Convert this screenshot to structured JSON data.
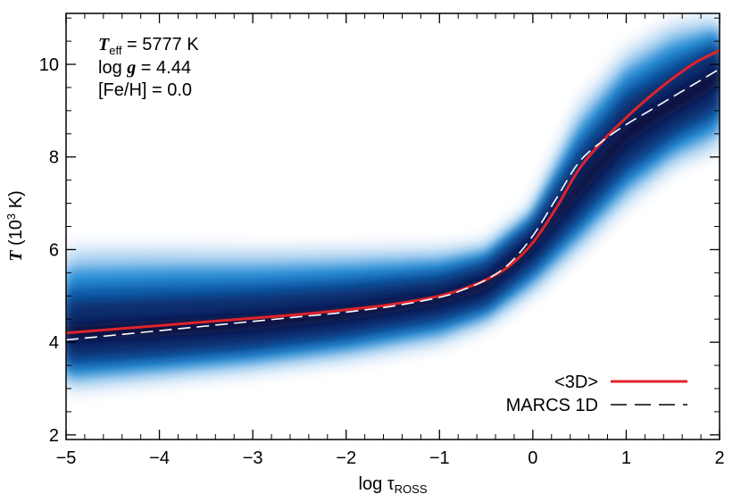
{
  "chart_data": {
    "type": "line",
    "xlabel": {
      "main": "log τ",
      "sub": "ROSS"
    },
    "ylabel": {
      "symbol": "T",
      "rest_pre": " (10",
      "sup": "3",
      "rest_post": " K)"
    },
    "xlim": [
      -5,
      2
    ],
    "ylim": [
      1.9,
      11.1
    ],
    "x_ticks": [
      -5,
      -4,
      -3,
      -2,
      -1,
      0,
      1,
      2
    ],
    "x_tick_labels": [
      "−5",
      "−4",
      "−3",
      "−2",
      "−1",
      "0",
      "1",
      "2"
    ],
    "y_ticks": [
      2,
      4,
      6,
      8,
      10
    ],
    "y_tick_labels": [
      "2",
      "4",
      "6",
      "8",
      "10"
    ],
    "annotation": {
      "teff_symbol": "T",
      "teff_sub": "eff",
      "teff_value": " = 5777 K",
      "logg_pre": "log ",
      "logg_symbol": "g",
      "logg_value": " = 4.44",
      "feh": "[Fe/H] = 0.0"
    },
    "series": [
      {
        "name": "<3D>",
        "color": "#e0232a",
        "style": "solid",
        "x": [
          -5.0,
          -4.5,
          -4.0,
          -3.5,
          -3.0,
          -2.5,
          -2.0,
          -1.5,
          -1.0,
          -0.75,
          -0.5,
          -0.25,
          0.0,
          0.25,
          0.5,
          0.75,
          1.0,
          1.25,
          1.5,
          1.75,
          2.0
        ],
        "y": [
          4.2,
          4.28,
          4.36,
          4.44,
          4.52,
          4.6,
          4.7,
          4.82,
          5.0,
          5.15,
          5.35,
          5.65,
          6.15,
          6.9,
          7.75,
          8.35,
          8.85,
          9.3,
          9.7,
          10.05,
          10.3
        ]
      },
      {
        "name": "MARCS 1D",
        "color": "#ffffff",
        "legend_color": "#000000",
        "style": "dashed",
        "x": [
          -5.0,
          -4.5,
          -4.0,
          -3.5,
          -3.0,
          -2.5,
          -2.0,
          -1.5,
          -1.0,
          -0.75,
          -0.5,
          -0.25,
          0.0,
          0.25,
          0.5,
          0.75,
          1.0,
          1.25,
          1.5,
          1.75,
          2.0
        ],
        "y": [
          4.05,
          4.15,
          4.25,
          4.35,
          4.45,
          4.55,
          4.65,
          4.78,
          4.97,
          5.13,
          5.35,
          5.7,
          6.3,
          7.1,
          7.9,
          8.35,
          8.7,
          9.0,
          9.3,
          9.6,
          9.9
        ]
      }
    ],
    "distribution": {
      "description_colormap": "blue density",
      "x": [
        -5.0,
        -4.0,
        -3.0,
        -2.0,
        -1.0,
        -0.5,
        0.0,
        0.5,
        1.0,
        1.5,
        2.0
      ],
      "upper": [
        6.15,
        6.15,
        6.1,
        6.1,
        6.1,
        6.2,
        7.0,
        9.2,
        10.4,
        11.0,
        11.1
      ],
      "lower": [
        2.9,
        3.1,
        3.3,
        3.55,
        3.9,
        4.3,
        5.0,
        5.9,
        6.9,
        7.7,
        8.1
      ],
      "core_upper": [
        4.6,
        4.7,
        4.8,
        4.95,
        5.2,
        5.55,
        6.4,
        7.8,
        9.0,
        9.6,
        10.2
      ],
      "core_lower": [
        3.8,
        3.9,
        4.05,
        4.3,
        4.65,
        4.95,
        5.8,
        6.9,
        8.0,
        8.7,
        9.3
      ],
      "colors": [
        "#e4eef9",
        "#8cc1eb",
        "#2b8fd6",
        "#0d5ba8",
        "#0a2a6a",
        "#0a0f3a"
      ]
    },
    "legend": {
      "placement": "bottom-right"
    }
  }
}
